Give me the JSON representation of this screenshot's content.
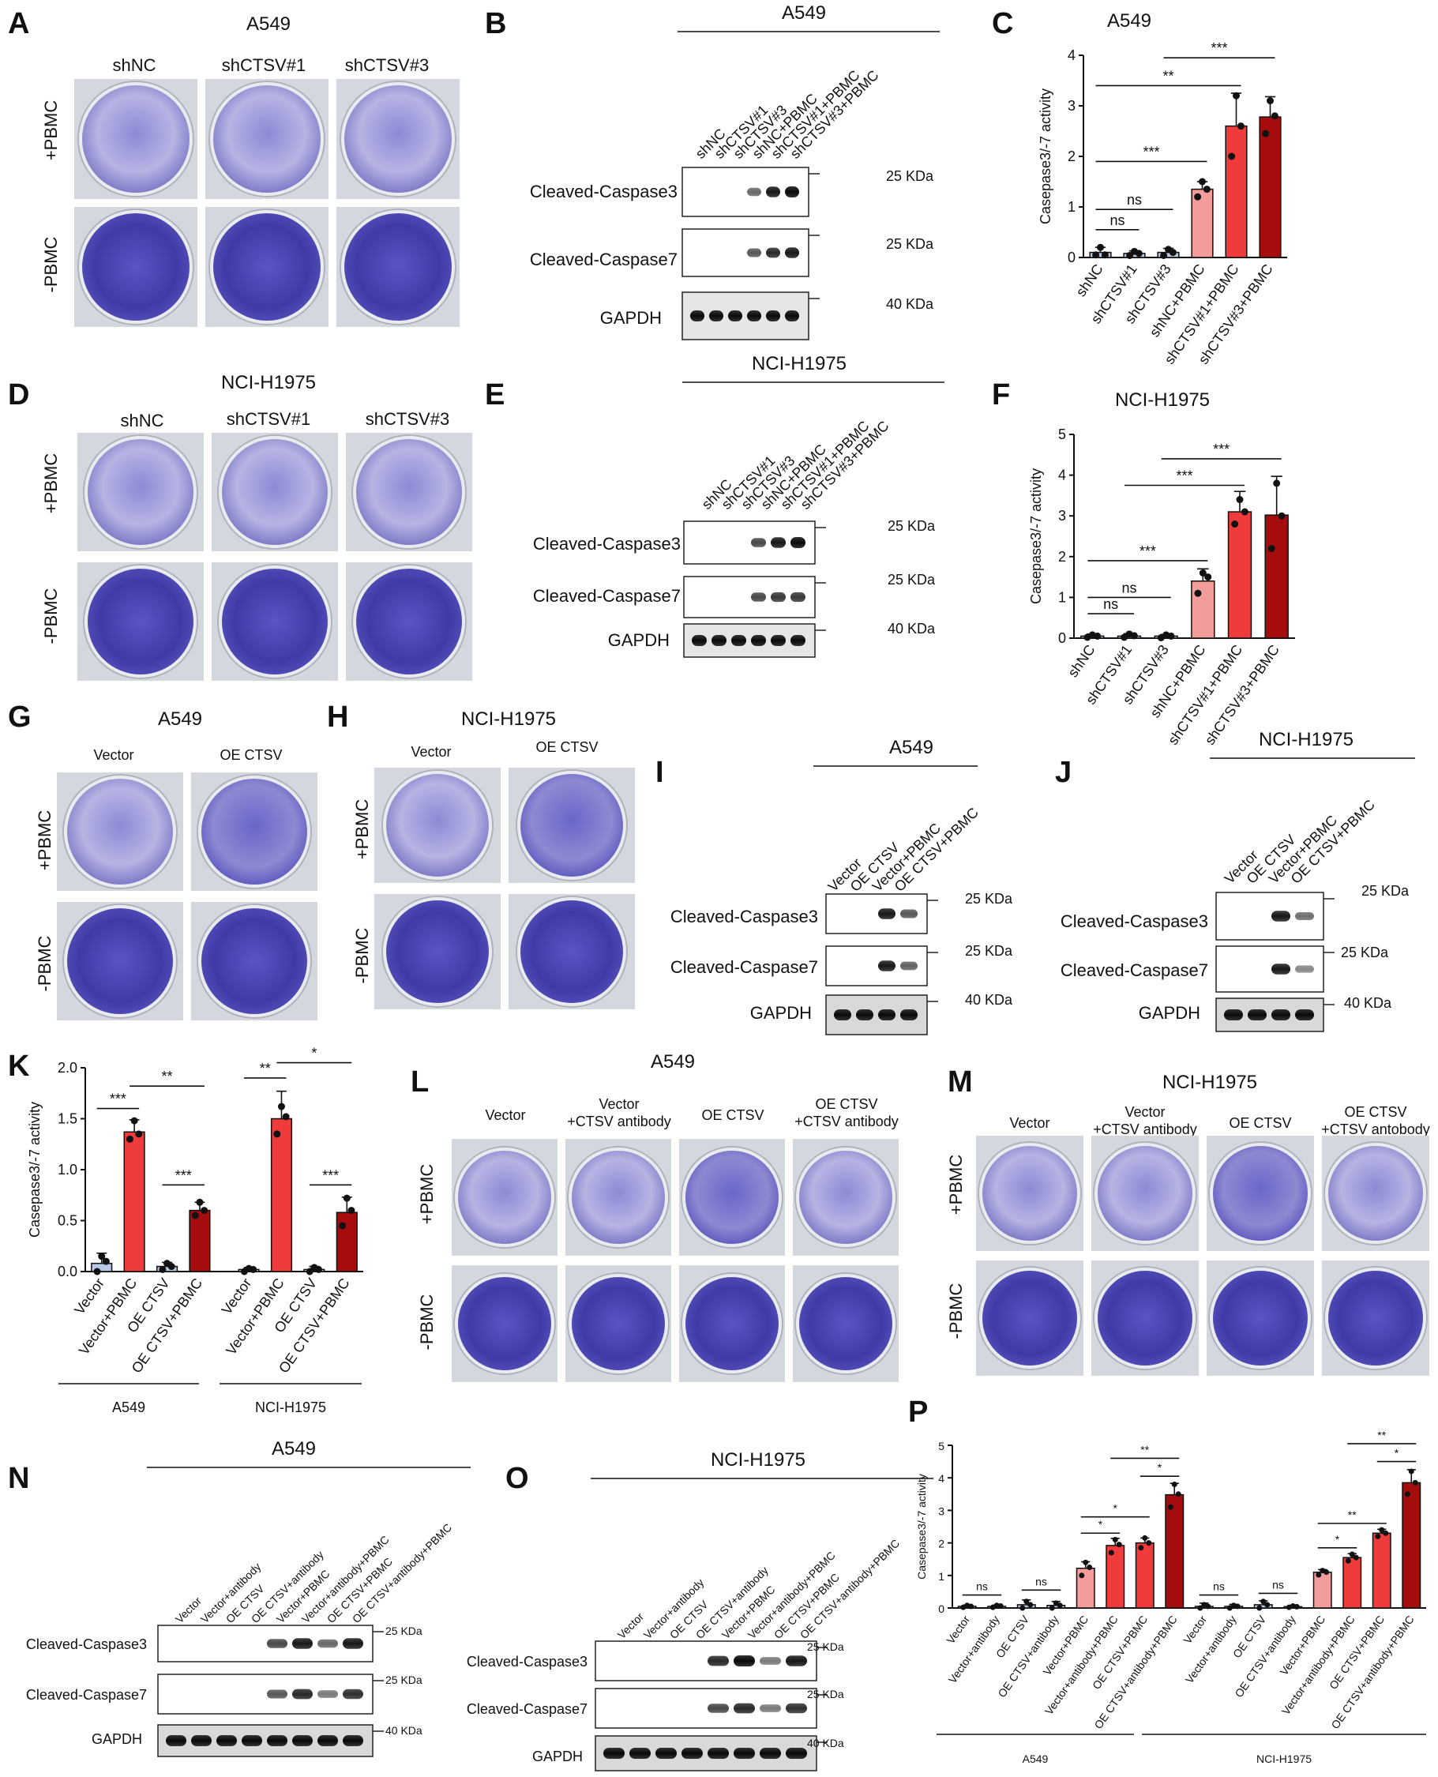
{
  "colors": {
    "ctrl": "#b9c7e6",
    "light": "#f39c9c",
    "mid": "#ef3b3b",
    "dark": "#a50d0d",
    "dye": "#4c4cb8"
  },
  "common": {
    "plus_pbmc": "+PBMC",
    "minus_pbmc": "-PBMC",
    "cc3": "Cleaved-Caspase3",
    "cc7": "Cleaved-Caspase7",
    "gapdh": "GAPDH",
    "kda25": "25 KDa",
    "kda40": "40 KDa",
    "kda25b": "25 KDa",
    "ylabel": "Casepase3/-7 activity"
  },
  "A": {
    "letter": "A",
    "title": "A549",
    "cols": [
      "shNC",
      "shCTSV#1",
      "shCTSV#3"
    ]
  },
  "B": {
    "letter": "B",
    "title": "A549",
    "lanes": [
      "shNC",
      "shCTSV#1",
      "shCTSV#3",
      "shNC+PBMC",
      "shCTSV#1+PBMC",
      "shCTSV#3+PBMC"
    ]
  },
  "C": {
    "letter": "C",
    "title": "A549"
  },
  "D": {
    "letter": "D",
    "title": "NCI-H1975",
    "cols": [
      "shNC",
      "shCTSV#1",
      "shCTSV#3"
    ]
  },
  "E": {
    "letter": "E",
    "title": "NCI-H1975",
    "lanes": [
      "shNC",
      "shCTSV#1",
      "shCTSV#3",
      "shNC+PBMC",
      "shCTSV#1+PBMC",
      "shCTSV#3+PBMC"
    ]
  },
  "F": {
    "letter": "F",
    "title": "NCI-H1975"
  },
  "G": {
    "letter": "G",
    "title": "A549",
    "cols": [
      "Vector",
      "OE CTSV"
    ]
  },
  "H": {
    "letter": "H",
    "title": "NCI-H1975",
    "cols": [
      "Vector",
      "OE CTSV"
    ]
  },
  "I": {
    "letter": "I",
    "title": "A549",
    "lanes": [
      "Vector",
      "OE CTSV",
      "Vector+PBMC",
      "OE CTSV+PBMC"
    ]
  },
  "J": {
    "letter": "J",
    "title": "NCI-H1975",
    "lanes": [
      "Vector",
      "OE CTSV",
      "Vector+PBMC",
      "OE CTSV+PBMC"
    ],
    "kda25": "25 KDa",
    "kda25b": "25 KDa",
    "kda40": "40 KDa"
  },
  "K": {
    "letter": "K",
    "groups": [
      "A549",
      "NCI-H1975"
    ]
  },
  "L": {
    "letter": "L",
    "title": "A549",
    "cols": [
      "Vector",
      "Vector\n+CTSV antibody",
      "OE CTSV",
      "OE CTSV\n+CTSV antibody"
    ]
  },
  "M": {
    "letter": "M",
    "title": "NCI-H1975",
    "cols": [
      "Vector",
      "Vector\n+CTSV antibody",
      "OE CTSV",
      "OE CTSV\n+CTSV antobody"
    ]
  },
  "N": {
    "letter": "N",
    "title": "A549",
    "lanes": [
      "Vector",
      "Vector+antibody",
      "OE CTSV",
      "OE CTSV+antibody",
      "Vector+PBMC",
      "Vector+antibody+PBMC",
      "OE CTSV+PBMC",
      "OE CTSV+antibody+PBMC"
    ]
  },
  "O": {
    "letter": "O",
    "title": "NCI-H1975",
    "lanes": [
      "Vector",
      "Vector+antibody",
      "OE CTSV",
      "OE CTSV+antibody",
      "Vector+PBMC",
      "Vector+antibody+PBMC",
      "OE CTSV+PBMC",
      "OE CTSV+antibody+PBMC"
    ]
  },
  "P": {
    "letter": "P",
    "groups": [
      "A549",
      "NCI-H1975"
    ]
  },
  "chart_data": [
    {
      "panel": "C",
      "type": "bar",
      "title": "A549",
      "ylabel": "Casepase3/-7 activity",
      "ylim": [
        0,
        4
      ],
      "yticks": [
        0,
        1,
        2,
        3,
        4
      ],
      "categories": [
        "shNC",
        "shCTSV#1",
        "shCTSV#3",
        "shNC+PBMC",
        "shCTSV#1+PBMC",
        "shCTSV#3+PBMC"
      ],
      "values": [
        0.1,
        0.08,
        0.1,
        1.35,
        2.6,
        2.78
      ],
      "errors": [
        0.1,
        0.05,
        0.08,
        0.15,
        0.65,
        0.4
      ],
      "points": [
        [
          0.05,
          0.2,
          0.05
        ],
        [
          0.04,
          0.12,
          0.08
        ],
        [
          0.04,
          0.16,
          0.1
        ],
        [
          1.2,
          1.5,
          1.35
        ],
        [
          2.0,
          3.2,
          2.6
        ],
        [
          2.45,
          3.1,
          2.8
        ]
      ],
      "fills": [
        "ctrl",
        "ctrl",
        "ctrl",
        "light",
        "mid",
        "dark"
      ],
      "annotations": [
        {
          "from": 0,
          "to": 1,
          "y": 0.55,
          "text": "ns"
        },
        {
          "from": 0,
          "to": 2,
          "y": 0.95,
          "text": "ns"
        },
        {
          "from": 0,
          "to": 3,
          "y": 1.9,
          "text": "***"
        },
        {
          "from": 0,
          "to": 4,
          "y": 3.4,
          "text": "**"
        },
        {
          "from": 2,
          "to": 5,
          "y": 3.95,
          "text": "***"
        }
      ]
    },
    {
      "panel": "F",
      "type": "bar",
      "title": "NCI-H1975",
      "ylabel": "Casepase3/-7 activity",
      "ylim": [
        0,
        5
      ],
      "yticks": [
        0,
        1,
        2,
        3,
        4,
        5
      ],
      "categories": [
        "shNC",
        "shCTSV#1",
        "shCTSV#3",
        "shNC+PBMC",
        "shCTSV#1+PBMC",
        "shCTSV#3+PBMC"
      ],
      "values": [
        0.05,
        0.05,
        0.05,
        1.4,
        3.1,
        3.02
      ],
      "errors": [
        0.05,
        0.06,
        0.04,
        0.3,
        0.5,
        0.95
      ],
      "points": [
        [
          0.02,
          0.08,
          0.05
        ],
        [
          0.02,
          0.1,
          0.06
        ],
        [
          0.01,
          0.08,
          0.05
        ],
        [
          1.1,
          1.6,
          1.5
        ],
        [
          2.8,
          3.4,
          3.1
        ],
        [
          2.2,
          3.8,
          3.0
        ]
      ],
      "fills": [
        "ctrl",
        "ctrl",
        "ctrl",
        "light",
        "mid",
        "dark"
      ],
      "annotations": [
        {
          "from": 0,
          "to": 1,
          "y": 0.6,
          "text": "ns"
        },
        {
          "from": 0,
          "to": 2,
          "y": 1.0,
          "text": "ns"
        },
        {
          "from": 0,
          "to": 3,
          "y": 1.9,
          "text": "***"
        },
        {
          "from": 1,
          "to": 4,
          "y": 3.75,
          "text": "***"
        },
        {
          "from": 2,
          "to": 5,
          "y": 4.4,
          "text": "***"
        }
      ]
    },
    {
      "panel": "K",
      "type": "bar",
      "ylabel": "Casepase3/-7 activity",
      "ylim": [
        0,
        2.0
      ],
      "yticks": [
        0.0,
        0.5,
        1.0,
        1.5,
        2.0
      ],
      "categories": [
        "Vector",
        "Vector+PBMC",
        "OE CTSV",
        "OE CTSV+PBMC",
        "Vector",
        "Vector+PBMC",
        "OE CTSV",
        "OE CTSV+PBMC"
      ],
      "values": [
        0.08,
        1.37,
        0.05,
        0.6,
        0.02,
        1.5,
        0.02,
        0.58
      ],
      "errors": [
        0.1,
        0.12,
        0.04,
        0.08,
        0.02,
        0.27,
        0.03,
        0.15
      ],
      "points": [
        [
          0.0,
          0.15,
          0.1
        ],
        [
          1.3,
          1.48,
          1.35
        ],
        [
          0.02,
          0.08,
          0.05
        ],
        [
          0.55,
          0.68,
          0.6
        ],
        [
          0.0,
          0.03,
          0.02
        ],
        [
          1.35,
          1.62,
          1.52
        ],
        [
          0.0,
          0.04,
          0.02
        ],
        [
          0.45,
          0.72,
          0.6
        ]
      ],
      "fills": [
        "ctrl",
        "mid",
        "ctrl",
        "dark",
        "ctrl",
        "mid",
        "ctrl",
        "dark"
      ],
      "groups": [
        "A549",
        "NCI-H1975"
      ],
      "annotations": [
        {
          "from": 0,
          "to": 1,
          "y": 1.6,
          "text": "***"
        },
        {
          "from": 1,
          "to": 3,
          "y": 1.82,
          "text": "**"
        },
        {
          "from": 2,
          "to": 3,
          "y": 0.85,
          "text": "***"
        },
        {
          "from": 4,
          "to": 5,
          "y": 1.9,
          "text": "**"
        },
        {
          "from": 5,
          "to": 7,
          "y": 2.05,
          "text": "*"
        },
        {
          "from": 6,
          "to": 7,
          "y": 0.85,
          "text": "***"
        }
      ]
    },
    {
      "panel": "P",
      "type": "bar",
      "ylabel": "Casepase3/-7 activity",
      "ylim": [
        0,
        5
      ],
      "yticks": [
        0,
        1,
        2,
        3,
        4,
        5
      ],
      "categories": [
        "Vector",
        "Vector+antibody",
        "OE CTSV",
        "OE CTSV+antibody",
        "Vector+PBMC",
        "Vector+antibody+PBMC",
        "OE CTSV+PBMC",
        "OE CTSV+antibody+PBMC",
        "Vector",
        "Vector+antibody",
        "OE CTSV",
        "OE CTSV+antibody",
        "Vector+PBMC",
        "Vector+antibody+PBMC",
        "OE CTSV+PBMC",
        "OE CTSV+antibody+PBMC"
      ],
      "values": [
        0.05,
        0.05,
        0.1,
        0.08,
        1.22,
        1.92,
        2.0,
        3.48,
        0.05,
        0.05,
        0.1,
        0.04,
        1.1,
        1.55,
        2.3,
        3.85
      ],
      "errors": [
        0.04,
        0.04,
        0.15,
        0.12,
        0.2,
        0.22,
        0.15,
        0.35,
        0.1,
        0.06,
        0.12,
        0.04,
        0.08,
        0.12,
        0.12,
        0.4
      ],
      "points": [
        [
          0.02,
          0.08,
          0.05
        ],
        [
          0.02,
          0.08,
          0.06
        ],
        [
          0.0,
          0.2,
          0.1
        ],
        [
          0.0,
          0.15,
          0.08
        ],
        [
          1.0,
          1.4,
          1.25
        ],
        [
          1.7,
          2.1,
          1.95
        ],
        [
          1.85,
          2.15,
          2.0
        ],
        [
          3.1,
          3.8,
          3.5
        ],
        [
          0.0,
          0.1,
          0.05
        ],
        [
          0.0,
          0.08,
          0.05
        ],
        [
          0.0,
          0.2,
          0.1
        ],
        [
          0.02,
          0.06,
          0.04
        ],
        [
          1.02,
          1.15,
          1.1
        ],
        [
          1.45,
          1.65,
          1.55
        ],
        [
          2.2,
          2.4,
          2.3
        ],
        [
          3.5,
          4.2,
          3.85
        ]
      ],
      "fills": [
        "ctrl",
        "ctrl",
        "ctrl",
        "ctrl",
        "light",
        "mid",
        "mid",
        "dark",
        "ctrl",
        "ctrl",
        "ctrl",
        "ctrl",
        "light",
        "mid",
        "mid",
        "dark"
      ],
      "groups": [
        "A549",
        "NCI-H1975"
      ],
      "annotations": [
        {
          "from": 0,
          "to": 1,
          "y": 0.4,
          "text": "ns"
        },
        {
          "from": 2,
          "to": 3,
          "y": 0.55,
          "text": "ns"
        },
        {
          "from": 4,
          "to": 5,
          "y": 2.3,
          "text": "*"
        },
        {
          "from": 4,
          "to": 6,
          "y": 2.8,
          "text": "*"
        },
        {
          "from": 6,
          "to": 7,
          "y": 4.05,
          "text": "*"
        },
        {
          "from": 5,
          "to": 7,
          "y": 4.6,
          "text": "**"
        },
        {
          "from": 8,
          "to": 9,
          "y": 0.4,
          "text": "ns"
        },
        {
          "from": 10,
          "to": 11,
          "y": 0.45,
          "text": "ns"
        },
        {
          "from": 12,
          "to": 13,
          "y": 1.85,
          "text": "*"
        },
        {
          "from": 12,
          "to": 14,
          "y": 2.6,
          "text": "**"
        },
        {
          "from": 14,
          "to": 15,
          "y": 4.5,
          "text": "*"
        },
        {
          "from": 13,
          "to": 15,
          "y": 5.05,
          "text": "**"
        }
      ]
    }
  ]
}
